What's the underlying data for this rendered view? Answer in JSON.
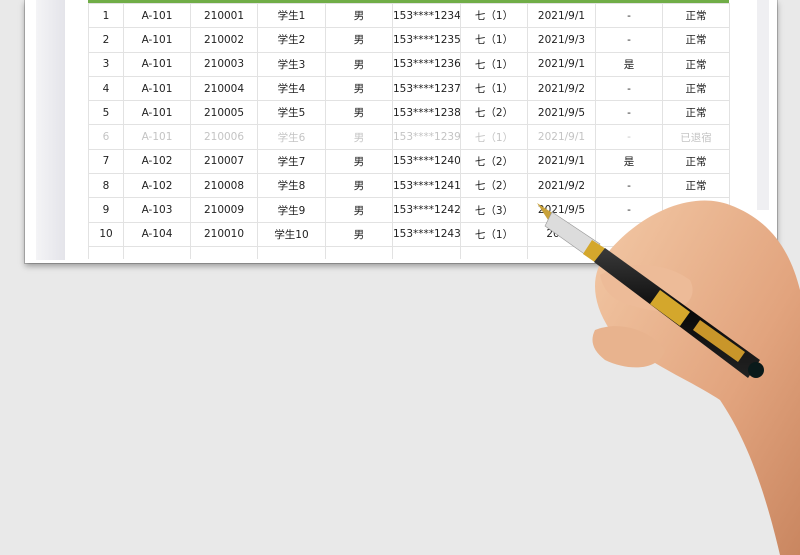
{
  "table": {
    "rows": [
      [
        "1",
        "A-101",
        "210001",
        "学生1",
        "男",
        "153****1234",
        "七（1）",
        "2021/9/1",
        "-",
        "正常"
      ],
      [
        "2",
        "A-101",
        "210002",
        "学生2",
        "男",
        "153****1235",
        "七（1）",
        "2021/9/3",
        "-",
        "正常"
      ],
      [
        "3",
        "A-101",
        "210003",
        "学生3",
        "男",
        "153****1236",
        "七（1）",
        "2021/9/1",
        "是",
        "正常"
      ],
      [
        "4",
        "A-101",
        "210004",
        "学生4",
        "男",
        "153****1237",
        "七（1）",
        "2021/9/2",
        "-",
        "正常"
      ],
      [
        "5",
        "A-101",
        "210005",
        "学生5",
        "男",
        "153****1238",
        "七（2）",
        "2021/9/5",
        "-",
        "正常"
      ],
      [
        "6",
        "A-101",
        "210006",
        "学生6",
        "男",
        "153****1239",
        "七（1）",
        "2021/9/1",
        "-",
        "已退宿"
      ],
      [
        "7",
        "A-102",
        "210007",
        "学生7",
        "男",
        "153****1240",
        "七（2）",
        "2021/9/1",
        "是",
        "正常"
      ],
      [
        "8",
        "A-102",
        "210008",
        "学生8",
        "男",
        "153****1241",
        "七（2）",
        "2021/9/2",
        "-",
        "正常"
      ],
      [
        "9",
        "A-103",
        "210009",
        "学生9",
        "男",
        "153****1242",
        "七（3）",
        "2021/9/5",
        "-",
        ""
      ],
      [
        "10",
        "A-104",
        "210010",
        "学生10",
        "男",
        "153****1243",
        "七（1）",
        "2021/",
        "",
        ""
      ]
    ],
    "dimmed_row_index": 5
  },
  "colors": {
    "header_accent": "#70ad47",
    "dimmed_text": "#c4c4c4"
  }
}
